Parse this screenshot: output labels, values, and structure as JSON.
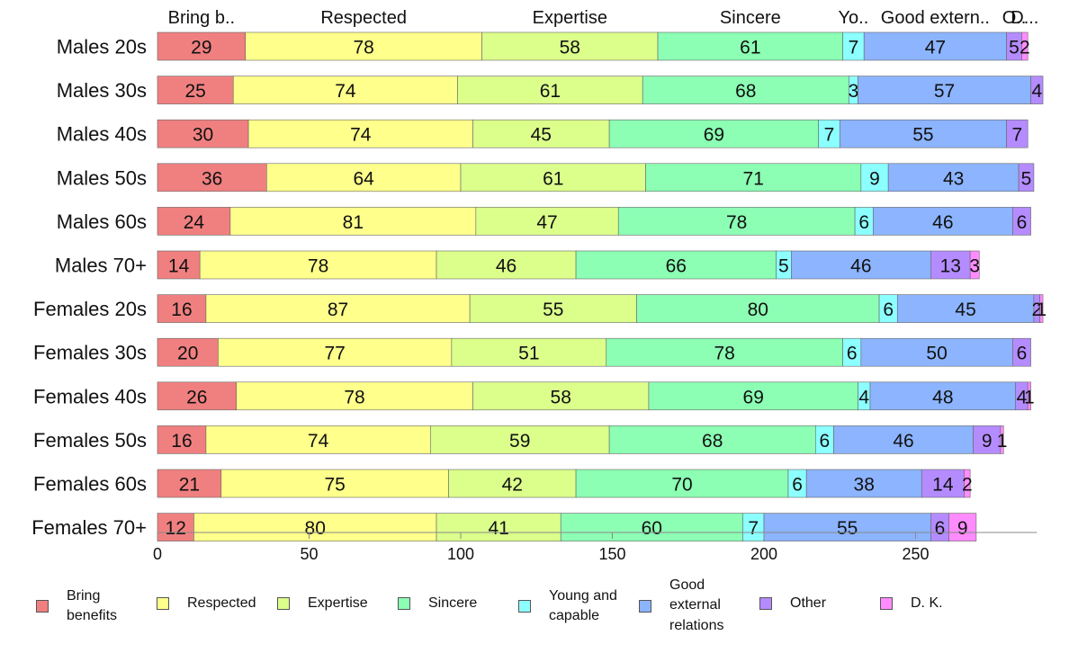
{
  "chart_data": {
    "type": "bar",
    "orientation": "horizontal",
    "stacked": true,
    "categories": [
      "Males 20s",
      "Males 30s",
      "Males 40s",
      "Males 50s",
      "Males 60s",
      "Males 70+",
      "Females 20s",
      "Females 30s",
      "Females 40s",
      "Females 50s",
      "Females 60s",
      "Females 70+"
    ],
    "series": [
      {
        "name": "Bring benefits",
        "color": "#f08080",
        "values": [
          29,
          25,
          30,
          36,
          24,
          14,
          16,
          20,
          26,
          16,
          21,
          12
        ]
      },
      {
        "name": "Respected",
        "color": "#ffff8c",
        "values": [
          78,
          74,
          74,
          64,
          81,
          78,
          87,
          77,
          78,
          74,
          75,
          80
        ]
      },
      {
        "name": "Expertise",
        "color": "#dcff8c",
        "values": [
          58,
          61,
          45,
          61,
          47,
          46,
          55,
          51,
          58,
          59,
          42,
          41
        ]
      },
      {
        "name": "Sincere",
        "color": "#8cffb4",
        "values": [
          61,
          68,
          69,
          71,
          78,
          66,
          80,
          78,
          69,
          68,
          70,
          60
        ]
      },
      {
        "name": "Young and capable",
        "color": "#8cffff",
        "values": [
          7,
          3,
          7,
          9,
          6,
          5,
          6,
          6,
          4,
          6,
          6,
          7
        ]
      },
      {
        "name": "Good external relations",
        "color": "#8cb4ff",
        "values": [
          47,
          57,
          55,
          43,
          46,
          46,
          45,
          50,
          48,
          46,
          38,
          55
        ]
      },
      {
        "name": "Other",
        "color": "#b48cff",
        "values": [
          5,
          4,
          7,
          5,
          6,
          13,
          2,
          6,
          4,
          9,
          14,
          6
        ]
      },
      {
        "name": "D. K.",
        "color": "#ff8cff",
        "values": [
          2,
          0,
          0,
          0,
          0,
          3,
          1,
          0,
          1,
          1,
          2,
          9
        ]
      }
    ],
    "top_labels": [
      "Bring b..",
      "Respected",
      "Expertise",
      "Sincere",
      "Yo..",
      "Good extern..",
      "O..",
      "D..."
    ],
    "xlim": [
      0,
      290
    ],
    "x_ticks": [
      0,
      50,
      100,
      150,
      200,
      250
    ],
    "grid": false,
    "legend_position": "bottom"
  },
  "legend": [
    {
      "label": "Bring\nbenefits"
    },
    {
      "label": "Respected"
    },
    {
      "label": "Expertise"
    },
    {
      "label": "Sincere"
    },
    {
      "label": "Young and\ncapable"
    },
    {
      "label": "Good\nexternal\nrelations"
    },
    {
      "label": "Other"
    },
    {
      "label": "D. K."
    }
  ]
}
